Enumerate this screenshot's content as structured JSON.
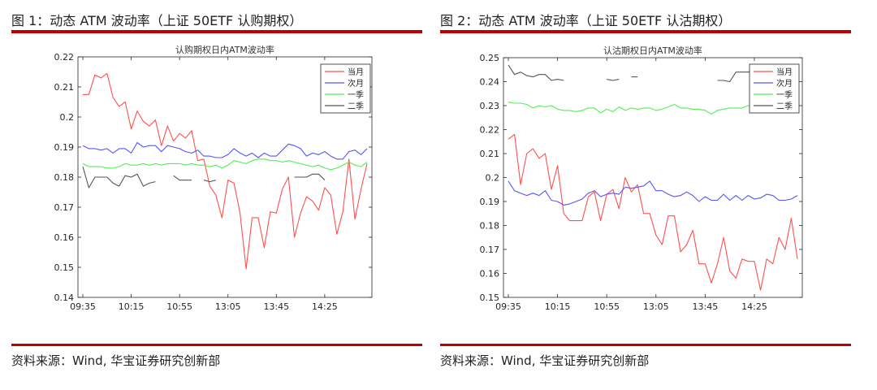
{
  "figures": [
    {
      "title": "图 1：动态 ATM 波动率（上证 50ETF 认购期权）",
      "source": "资料来源：Wind, 华宝证券研究创新部"
    },
    {
      "title": "图 2：动态 ATM 波动率（上证 50ETF 认沽期权）",
      "source": "资料来源：Wind, 华宝证券研究创新部"
    }
  ],
  "chart_data": [
    {
      "type": "line",
      "title": "认购期权日内ATM波动率",
      "x_tick_labels": [
        "09:35",
        "10:15",
        "10:55",
        "13:05",
        "13:45",
        "14:25"
      ],
      "x_tick_index": [
        0,
        8,
        16,
        24,
        32,
        40
      ],
      "ylim": [
        0.14,
        0.22
      ],
      "y_ticks": [
        0.14,
        0.15,
        0.16,
        0.17,
        0.18,
        0.19,
        0.2,
        0.21,
        0.22
      ],
      "legend_position": "top-right",
      "grid": false,
      "series": [
        {
          "name": "当月",
          "color": "#ff5050",
          "values": [
            0.2075,
            0.2075,
            0.214,
            0.213,
            0.2145,
            0.2065,
            0.2035,
            0.205,
            0.196,
            0.202,
            0.1985,
            0.197,
            0.199,
            0.1905,
            0.197,
            0.192,
            0.1945,
            0.193,
            0.1955,
            0.1855,
            0.186,
            0.177,
            0.174,
            0.1665,
            0.179,
            0.178,
            0.168,
            0.1495,
            0.1665,
            0.1665,
            0.1565,
            0.1685,
            0.168,
            0.176,
            0.18,
            0.16,
            0.168,
            0.1735,
            0.172,
            0.169,
            0.1765,
            0.174,
            0.161,
            0.1685,
            0.186,
            0.166,
            0.176,
            0.1845
          ]
        },
        {
          "name": "次月",
          "color": "#5555ff",
          "values": [
            0.1905,
            0.1895,
            0.1895,
            0.189,
            0.1895,
            0.188,
            0.1895,
            0.1895,
            0.188,
            0.1915,
            0.19,
            0.1905,
            0.1905,
            0.1885,
            0.1905,
            0.19,
            0.1895,
            0.1885,
            0.188,
            0.189,
            0.187,
            0.187,
            0.1865,
            0.1865,
            0.1875,
            0.1895,
            0.188,
            0.187,
            0.188,
            0.1865,
            0.188,
            0.187,
            0.187,
            0.189,
            0.191,
            0.1905,
            0.1895,
            0.187,
            0.188,
            0.1875,
            0.1885,
            0.187,
            0.186,
            0.186,
            0.1885,
            0.189,
            0.1875,
            0.1895
          ]
        },
        {
          "name": "一季",
          "color": "#55ee55",
          "values": [
            0.1845,
            0.1835,
            0.1835,
            0.1835,
            0.183,
            0.183,
            0.1835,
            0.1845,
            0.184,
            0.184,
            0.1845,
            0.184,
            0.1845,
            0.184,
            0.1845,
            0.1845,
            0.1845,
            0.184,
            0.1845,
            0.184,
            0.184,
            0.1835,
            0.184,
            0.183,
            0.184,
            0.1855,
            0.185,
            0.1845,
            0.1855,
            0.186,
            0.186,
            0.1855,
            0.1855,
            0.185,
            0.1855,
            0.185,
            0.1845,
            0.184,
            0.1835,
            0.184,
            0.183,
            0.1825,
            0.183,
            0.184,
            0.185,
            0.184,
            0.1835,
            0.185
          ]
        },
        {
          "name": "二季",
          "color": "#555555",
          "values": [
            0.1835,
            0.1765,
            0.18,
            0.18,
            0.18,
            0.178,
            0.177,
            0.1805,
            0.18,
            0.181,
            0.177,
            0.178,
            0.1785,
            null,
            null,
            0.1805,
            0.179,
            0.179,
            0.179,
            null,
            0.179,
            0.1785,
            0.179,
            null,
            null,
            null,
            null,
            null,
            null,
            null,
            null,
            null,
            null,
            null,
            null,
            0.18,
            0.18,
            0.18,
            0.181,
            0.181,
            0.179,
            null,
            null,
            null,
            null,
            null,
            null,
            null
          ]
        }
      ]
    },
    {
      "type": "line",
      "title": "认沽期权日内ATM波动率",
      "x_tick_labels": [
        "09:35",
        "10:15",
        "10:55",
        "13:05",
        "13:45",
        "14:25"
      ],
      "x_tick_index": [
        0,
        8,
        16,
        24,
        32,
        40
      ],
      "ylim": [
        0.15,
        0.25
      ],
      "y_ticks": [
        0.15,
        0.16,
        0.17,
        0.18,
        0.19,
        0.2,
        0.21,
        0.22,
        0.23,
        0.24,
        0.25
      ],
      "legend_position": "top-right",
      "grid": false,
      "series": [
        {
          "name": "当月",
          "color": "#ff5050",
          "values": [
            0.216,
            0.218,
            0.197,
            0.21,
            0.212,
            0.208,
            0.21,
            0.195,
            0.205,
            0.185,
            0.182,
            0.182,
            0.182,
            0.192,
            0.194,
            0.182,
            0.193,
            0.195,
            0.187,
            0.2,
            0.194,
            0.197,
            0.185,
            0.185,
            0.176,
            0.172,
            0.184,
            0.184,
            0.169,
            0.172,
            0.178,
            0.164,
            0.164,
            0.156,
            0.164,
            0.175,
            0.161,
            0.158,
            0.166,
            0.165,
            0.165,
            0.153,
            0.166,
            0.164,
            0.175,
            0.17,
            0.183,
            0.166
          ]
        },
        {
          "name": "次月",
          "color": "#5555ff",
          "values": [
            0.1985,
            0.1945,
            0.1935,
            0.1925,
            0.1935,
            0.1925,
            0.1945,
            0.1905,
            0.19,
            0.1885,
            0.189,
            0.19,
            0.191,
            0.1935,
            0.1945,
            0.192,
            0.193,
            0.1935,
            0.193,
            0.196,
            0.1955,
            0.196,
            0.1965,
            0.1985,
            0.1945,
            0.1945,
            0.193,
            0.192,
            0.1925,
            0.194,
            0.1925,
            0.19,
            0.192,
            0.1905,
            0.1905,
            0.193,
            0.1905,
            0.1925,
            0.1905,
            0.1925,
            0.191,
            0.1915,
            0.193,
            0.1925,
            0.1905,
            0.1905,
            0.191,
            0.1925
          ]
        },
        {
          "name": "一季",
          "color": "#55ee55",
          "values": [
            0.2315,
            0.231,
            0.231,
            0.2305,
            0.229,
            0.23,
            0.2295,
            0.23,
            0.2285,
            0.228,
            0.228,
            0.2275,
            0.228,
            0.229,
            0.229,
            0.227,
            0.2285,
            0.2275,
            0.2295,
            0.228,
            0.229,
            0.2285,
            0.229,
            0.229,
            0.228,
            0.2285,
            0.2295,
            0.2305,
            0.229,
            0.229,
            0.2285,
            0.2285,
            0.228,
            0.2265,
            0.228,
            0.2285,
            0.229,
            0.229,
            0.229,
            0.23,
            0.23,
            0.229,
            0.2285,
            0.2285,
            0.23,
            0.229,
            0.2295,
            0.23
          ]
        },
        {
          "name": "二季",
          "color": "#555555",
          "values": [
            0.247,
            0.243,
            0.244,
            0.2425,
            0.242,
            0.243,
            0.243,
            0.2405,
            0.241,
            0.2405,
            null,
            null,
            null,
            null,
            null,
            null,
            0.241,
            0.2405,
            0.241,
            null,
            0.242,
            0.242,
            null,
            null,
            null,
            null,
            null,
            null,
            null,
            null,
            null,
            null,
            null,
            null,
            0.2405,
            0.2405,
            0.24,
            0.244,
            0.244,
            0.244,
            0.245,
            0.243,
            null,
            null,
            null,
            null,
            null,
            null
          ]
        }
      ]
    }
  ]
}
